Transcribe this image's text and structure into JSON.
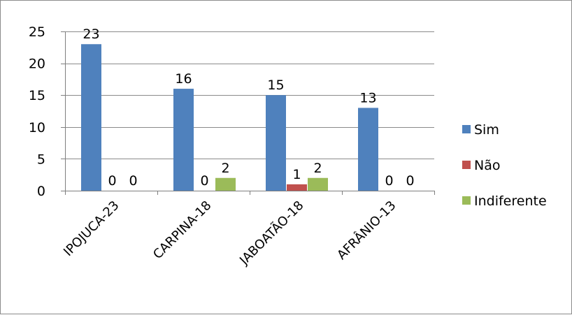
{
  "chart_data": {
    "type": "bar",
    "title": "",
    "xlabel": "",
    "ylabel": "",
    "categories": [
      "IPOJUCA-23",
      "CARPINA-18",
      "JABOATÃO-18",
      "AFRÂNIO-13"
    ],
    "series": [
      {
        "name": "Sim",
        "values": [
          23,
          16,
          15,
          13
        ],
        "color": "#4F81BD"
      },
      {
        "name": "Não",
        "values": [
          0,
          0,
          1,
          0
        ],
        "color": "#C0504D"
      },
      {
        "name": "Indiferente",
        "values": [
          0,
          2,
          2,
          0
        ],
        "color": "#9BBB59"
      }
    ],
    "ylim": [
      0,
      25
    ],
    "yticks": [
      0,
      5,
      10,
      15,
      20,
      25
    ],
    "grid": true,
    "legend_position": "right",
    "data_labels": true
  }
}
